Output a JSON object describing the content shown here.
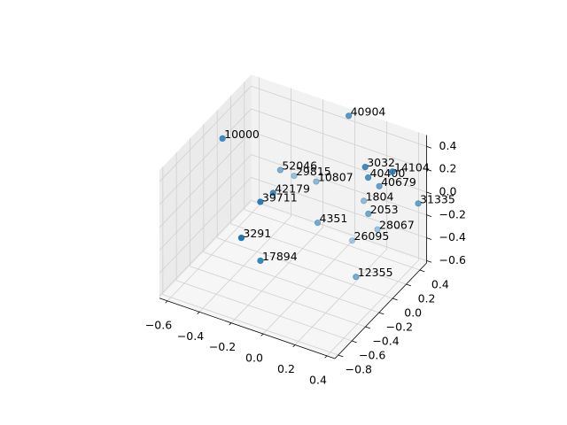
{
  "chart_data": {
    "type": "scatter3d",
    "labels": [
      "10000",
      "40904",
      "3032",
      "40400",
      "14104",
      "40679",
      "52046",
      "29815",
      "10807",
      "42179",
      "39711",
      "1804",
      "31335",
      "2053",
      "4351",
      "28067",
      "26095",
      "3291",
      "17894",
      "12355"
    ],
    "x": [
      -0.6,
      -0.03,
      0.15,
      0.16,
      0.3,
      0.2,
      -0.34,
      -0.3,
      -0.17,
      -0.27,
      -0.29,
      0.09,
      0.41,
      0.17,
      -0.08,
      0.18,
      0.06,
      -0.32,
      -0.23,
      0.19
    ],
    "y": [
      -0.04,
      0.48,
      0.3,
      0.32,
      0.35,
      0.39,
      0.2,
      0.31,
      0.33,
      -0.07,
      -0.21,
      0.42,
      0.47,
      0.3,
      0.14,
      0.41,
      0.32,
      -0.42,
      -0.35,
      0.07
    ],
    "z": [
      0.3,
      0.45,
      0.2,
      0.1,
      0.2,
      0,
      0,
      -0.1,
      -0.1,
      0,
      0,
      -0.2,
      -0.1,
      -0.2,
      -0.3,
      -0.4,
      -0.5,
      -0.2,
      -0.4,
      -0.6
    ],
    "color": "#1f77b4",
    "xlim": [
      -0.65,
      0.45
    ],
    "ylim": [
      -0.85,
      0.5
    ],
    "zlim": [
      -0.62,
      0.5
    ],
    "xticks": [
      {
        "value": -0.6,
        "label": "−0.6"
      },
      {
        "value": -0.4,
        "label": "−0.4"
      },
      {
        "value": -0.2,
        "label": "−0.2"
      },
      {
        "value": 0,
        "label": "0.0"
      },
      0.2,
      0.4
    ],
    "yticks": [
      {
        "value": -0.8,
        "label": "−0.8"
      },
      {
        "value": -0.6,
        "label": "−0.6"
      },
      {
        "value": -0.4,
        "label": "−0.4"
      },
      {
        "value": -0.2,
        "label": "−0.2"
      },
      {
        "value": 0,
        "label": "0.0"
      },
      0.2,
      0.4
    ],
    "zticks": [
      {
        "value": -0.6,
        "label": "−0.6"
      },
      {
        "value": -0.4,
        "label": "−0.4"
      },
      {
        "value": -0.2,
        "label": "−0.2"
      },
      {
        "value": 0,
        "label": "0.0"
      },
      0.2,
      0.4
    ],
    "grid": true
  }
}
